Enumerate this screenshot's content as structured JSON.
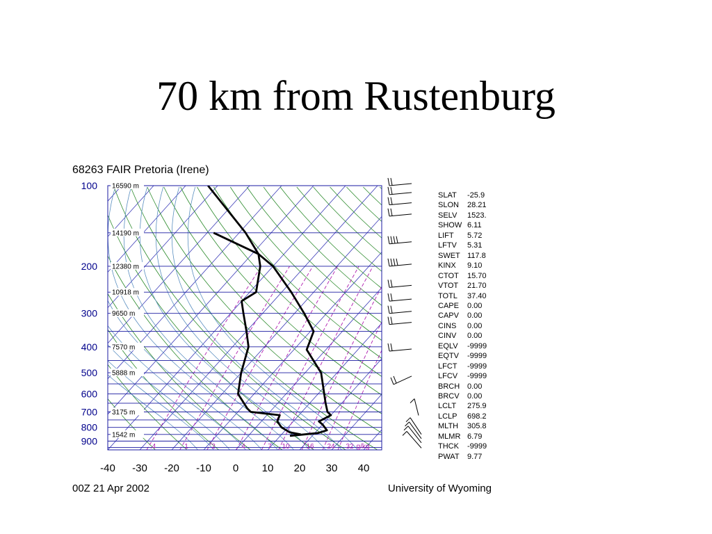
{
  "slide": {
    "title": "70 km from Rustenburg"
  },
  "chart_data": {
    "type": "skew-t",
    "title": "68263 FAIR Pretoria (Irene)",
    "footer_left": "00Z 21 Apr 2002",
    "footer_right": "University of Wyoming",
    "pressure_ticks": [
      "100",
      "200",
      "300",
      "400",
      "500",
      "600",
      "700",
      "800",
      "900"
    ],
    "temperature_ticks": [
      "-40",
      "-30",
      "-20",
      "-10",
      "0",
      "10",
      "20",
      "30",
      "40"
    ],
    "xlim": [
      -40,
      45
    ],
    "height_labels": [
      {
        "p": 100,
        "label": "16590 m"
      },
      {
        "p": 150,
        "label": "14190 m"
      },
      {
        "p": 200,
        "label": "12380 m"
      },
      {
        "p": 250,
        "label": "10918 m"
      },
      {
        "p": 300,
        "label": "9650 m"
      },
      {
        "p": 400,
        "label": "7570 m"
      },
      {
        "p": 500,
        "label": "5888 m"
      },
      {
        "p": 700,
        "label": "3175 m"
      },
      {
        "p": 850,
        "label": "1542 m"
      }
    ],
    "mixing_ratio_labels": [
      ".4",
      "1",
      "2",
      "4",
      "7",
      "10",
      "16",
      "24",
      "32",
      "g/kg"
    ],
    "temperature_profile": [
      {
        "p": 850,
        "t": 16
      },
      {
        "p": 835,
        "t": 12
      },
      {
        "p": 800,
        "t": 8
      },
      {
        "p": 760,
        "t": 5
      },
      {
        "p": 720,
        "t": 4
      },
      {
        "p": 700,
        "t": -6
      },
      {
        "p": 680,
        "t": -8
      },
      {
        "p": 600,
        "t": -15
      },
      {
        "p": 500,
        "t": -20
      },
      {
        "p": 400,
        "t": -25
      },
      {
        "p": 350,
        "t": -30
      },
      {
        "p": 300,
        "t": -36
      },
      {
        "p": 270,
        "t": -40
      },
      {
        "p": 250,
        "t": -38
      },
      {
        "p": 200,
        "t": -44
      },
      {
        "p": 180,
        "t": -48
      },
      {
        "p": 150,
        "t": -68
      }
    ],
    "dewpoint_profile": [
      {
        "p": 860,
        "t": 13
      },
      {
        "p": 840,
        "t": 21
      },
      {
        "p": 820,
        "t": 23
      },
      {
        "p": 780,
        "t": 20
      },
      {
        "p": 760,
        "t": 18
      },
      {
        "p": 720,
        "t": 20
      },
      {
        "p": 700,
        "t": 18
      },
      {
        "p": 650,
        "t": 15
      },
      {
        "p": 500,
        "t": 5
      },
      {
        "p": 410,
        "t": -6
      },
      {
        "p": 350,
        "t": -9
      },
      {
        "p": 300,
        "t": -17
      },
      {
        "p": 250,
        "t": -27
      },
      {
        "p": 200,
        "t": -40
      },
      {
        "p": 180,
        "t": -48
      },
      {
        "p": 150,
        "t": -58
      },
      {
        "p": 100,
        "t": -83
      }
    ],
    "wind_barb_levels": [
      900,
      860,
      830,
      800,
      680,
      540,
      415,
      330,
      300,
      270,
      240,
      200,
      165,
      130,
      118,
      108,
      100
    ],
    "stats": [
      {
        "key": "SLAT",
        "value": "-25.9"
      },
      {
        "key": "SLON",
        "value": "28.21"
      },
      {
        "key": "SELV",
        "value": "1523."
      },
      {
        "key": "SHOW",
        "value": "6.11"
      },
      {
        "key": "LIFT",
        "value": "5.72"
      },
      {
        "key": "LFTV",
        "value": "5.31"
      },
      {
        "key": "SWET",
        "value": "117.8"
      },
      {
        "key": "KINX",
        "value": "9.10"
      },
      {
        "key": "CTOT",
        "value": "15.70"
      },
      {
        "key": "VTOT",
        "value": "21.70"
      },
      {
        "key": "TOTL",
        "value": "37.40"
      },
      {
        "key": "CAPE",
        "value": "0.00"
      },
      {
        "key": "CAPV",
        "value": "0.00"
      },
      {
        "key": "CINS",
        "value": "0.00"
      },
      {
        "key": "CINV",
        "value": "0.00"
      },
      {
        "key": "EQLV",
        "value": "-9999"
      },
      {
        "key": "EQTV",
        "value": "-9999"
      },
      {
        "key": "LFCT",
        "value": "-9999"
      },
      {
        "key": "LFCV",
        "value": "-9999"
      },
      {
        "key": "BRCH",
        "value": "0.00"
      },
      {
        "key": "BRCV",
        "value": "0.00"
      },
      {
        "key": "LCLT",
        "value": "275.9"
      },
      {
        "key": "LCLP",
        "value": "698.2"
      },
      {
        "key": "MLTH",
        "value": "305.8"
      },
      {
        "key": "MLMR",
        "value": "6.79"
      },
      {
        "key": "THCK",
        "value": "-9999"
      },
      {
        "key": "PWAT",
        "value": "9.77"
      }
    ],
    "colors": {
      "isobar": "#1a1aa0",
      "isotherm": "#3a3ab8",
      "dry_adiabat": "#2b8a2b",
      "moist_adiabat": "#5b8fc0",
      "mixing_ratio": "#b020b0",
      "profile": "#000000",
      "axis_label": "#00008b"
    }
  }
}
